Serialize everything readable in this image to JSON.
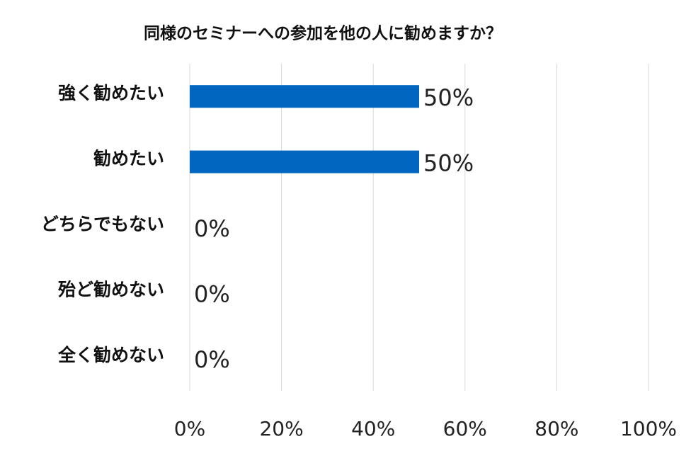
{
  "chart_data": {
    "type": "bar",
    "orientation": "horizontal",
    "title": "同様のセミナーへの参加を他の人に勧めますか？",
    "categories": [
      "強く勧めたい",
      "勧めたい",
      "どちらでもない",
      "殆ど勧めない",
      "全く勧めない"
    ],
    "values": [
      50,
      50,
      0,
      0,
      0
    ],
    "value_labels": [
      "50%",
      "50%",
      "0%",
      "0%",
      "0%"
    ],
    "color": "#0066c0",
    "xlim": [
      0,
      100
    ],
    "xticks": [
      {
        "value": 0,
        "label": "0%"
      },
      {
        "value": 20,
        "label": "20%"
      },
      {
        "value": 40,
        "label": "40%"
      },
      {
        "value": 60,
        "label": "60%"
      },
      {
        "value": 80,
        "label": "80%"
      },
      {
        "value": 100,
        "label": "100%"
      }
    ],
    "grid": true
  }
}
